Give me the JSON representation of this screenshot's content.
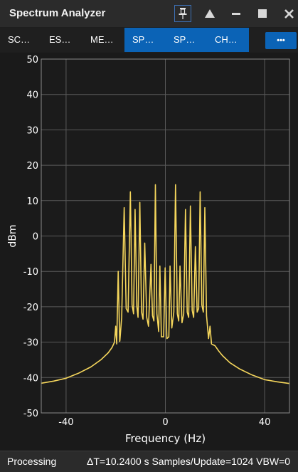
{
  "window": {
    "title": "Spectrum Analyzer"
  },
  "titlebar_icons": [
    "pin-icon",
    "triangle-up-icon",
    "minimize-icon",
    "maximize-icon",
    "close-icon"
  ],
  "tabs": [
    {
      "label": "SC…",
      "active": false
    },
    {
      "label": "ES…",
      "active": false
    },
    {
      "label": "ME…",
      "active": false
    },
    {
      "label": "SP…",
      "active": true
    },
    {
      "label": "SP…",
      "active": true
    },
    {
      "label": "CH…",
      "active": true
    }
  ],
  "more_button": {
    "label": "•••"
  },
  "status": {
    "state": "Processing",
    "info": "ΔT=10.2400 s  Samples/Update=1024  VBW=0"
  },
  "colors": {
    "trace": "#f5d65c",
    "active_tab": "#0b63b6",
    "plot_bg": "#1b1b1b",
    "grid": "#5a5a5a"
  },
  "chart_data": {
    "type": "line",
    "xlabel": "Frequency (Hz)",
    "ylabel": "dBm",
    "xlim": [
      -50,
      50
    ],
    "ylim": [
      -50,
      50
    ],
    "x_ticks": [
      -40,
      0,
      40
    ],
    "y_ticks": [
      50,
      40,
      30,
      20,
      10,
      0,
      -10,
      -20,
      -30,
      -40,
      -50
    ],
    "grid": true,
    "series": [
      {
        "points": [
          [
            -50,
            -41.6
          ],
          [
            -45,
            -41.0
          ],
          [
            -40,
            -40.2
          ],
          [
            -35,
            -38.8
          ],
          [
            -30,
            -37.0
          ],
          [
            -26,
            -35.0
          ],
          [
            -23,
            -33.0
          ],
          [
            -21.5,
            -31.5
          ],
          [
            -20.5,
            -30
          ],
          [
            -20,
            -25.5
          ],
          [
            -19.6,
            -30.5
          ],
          [
            -19,
            -10.0
          ],
          [
            -18.4,
            -29.8
          ],
          [
            -18.3,
            -29.5
          ],
          [
            -17.6,
            -23
          ],
          [
            -16.6,
            8.0
          ],
          [
            -15.8,
            -20.5
          ],
          [
            -15.0,
            -21.5
          ],
          [
            -14.1,
            12.5
          ],
          [
            -13.4,
            -19.5
          ],
          [
            -12.8,
            -22.0
          ],
          [
            -12.2,
            7.5
          ],
          [
            -11.5,
            -20.0
          ],
          [
            -11.0,
            -23.0
          ],
          [
            -10.3,
            9.5
          ],
          [
            -9.6,
            -21.5
          ],
          [
            -9.0,
            -23.5
          ],
          [
            -8.3,
            -2.0
          ],
          [
            -7.5,
            -23.0
          ],
          [
            -6.8,
            -25.5
          ],
          [
            -5.8,
            -8.0
          ],
          [
            -5.2,
            -22.5
          ],
          [
            -4.6,
            -24.0
          ],
          [
            -4.0,
            14.5
          ],
          [
            -3.4,
            -22.0
          ],
          [
            -2.7,
            -27.0
          ],
          [
            -2.2,
            -8.5
          ],
          [
            -1.6,
            -28.5
          ],
          [
            -0.7,
            -28.5
          ],
          [
            -0.1,
            -9.0
          ],
          [
            0.6,
            -29.0
          ],
          [
            1.4,
            -28.5
          ],
          [
            1.9,
            -8.5
          ],
          [
            2.6,
            -26.0
          ],
          [
            3.4,
            -21.5
          ],
          [
            4.1,
            14.5
          ],
          [
            4.8,
            -22.0
          ],
          [
            5.4,
            -24.0
          ],
          [
            5.9,
            -8.5
          ],
          [
            6.7,
            -24.5
          ],
          [
            7.4,
            -22.0
          ],
          [
            8.1,
            7.5
          ],
          [
            8.8,
            -21.5
          ],
          [
            9.4,
            -23.0
          ],
          [
            10.1,
            8.5
          ],
          [
            10.8,
            -21.0
          ],
          [
            11.4,
            -23.0
          ],
          [
            12.1,
            -3.0
          ],
          [
            12.8,
            -21.5
          ],
          [
            13.4,
            -20.5
          ],
          [
            14.0,
            12.5
          ],
          [
            14.7,
            -19.5
          ],
          [
            15.3,
            -21.5
          ],
          [
            15.9,
            8.0
          ],
          [
            16.6,
            -22.5
          ],
          [
            17.4,
            -29.0
          ],
          [
            18.0,
            -25.5
          ],
          [
            18.6,
            -30.5
          ],
          [
            20.0,
            -31.0
          ],
          [
            21.5,
            -32.5
          ],
          [
            23,
            -33.8
          ],
          [
            26,
            -35.8
          ],
          [
            30,
            -37.6
          ],
          [
            35,
            -39.3
          ],
          [
            40,
            -40.6
          ],
          [
            45,
            -41.2
          ],
          [
            50,
            -41.7
          ]
        ]
      }
    ]
  }
}
